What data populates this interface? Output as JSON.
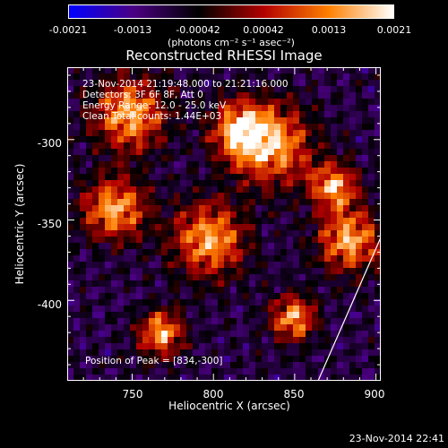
{
  "colorbar": {
    "ticks": [
      "-0.0021",
      "-0.0013",
      "-0.00042",
      "0.00042",
      "0.0013",
      "0.0021"
    ],
    "unit": "(photons cm⁻² s⁻¹ asec⁻²)"
  },
  "title": "Reconstructed RHESSI Image",
  "info": {
    "time": "23-Nov-2014 21:19:48.000 to 21:21:16.000",
    "detectors": "Detectors: 3F 6F 8F, Att 0",
    "energy": "Energy Range: 12.0 - 25.0 keV",
    "clean": "Clean     Total counts: 1.44E+03",
    "peak": "Position of Peak = [834,-300]"
  },
  "axes": {
    "xlabel": "Heliocentric X (arcsec)",
    "ylabel": "Heliocentric Y (arcsec)",
    "xticks": [
      "750",
      "800",
      "850",
      "900"
    ],
    "yticks": [
      "-300",
      "-350",
      "-400"
    ],
    "xlim": [
      710,
      903
    ],
    "ylim": [
      -450,
      -255
    ]
  },
  "timestamp": "23-Nov-2014 22:41",
  "colors": {
    "background": "#000000",
    "colormap": [
      "#0000ff",
      "#4b0082",
      "#000000",
      "#b30000",
      "#ff8000",
      "#ffffff"
    ]
  }
}
